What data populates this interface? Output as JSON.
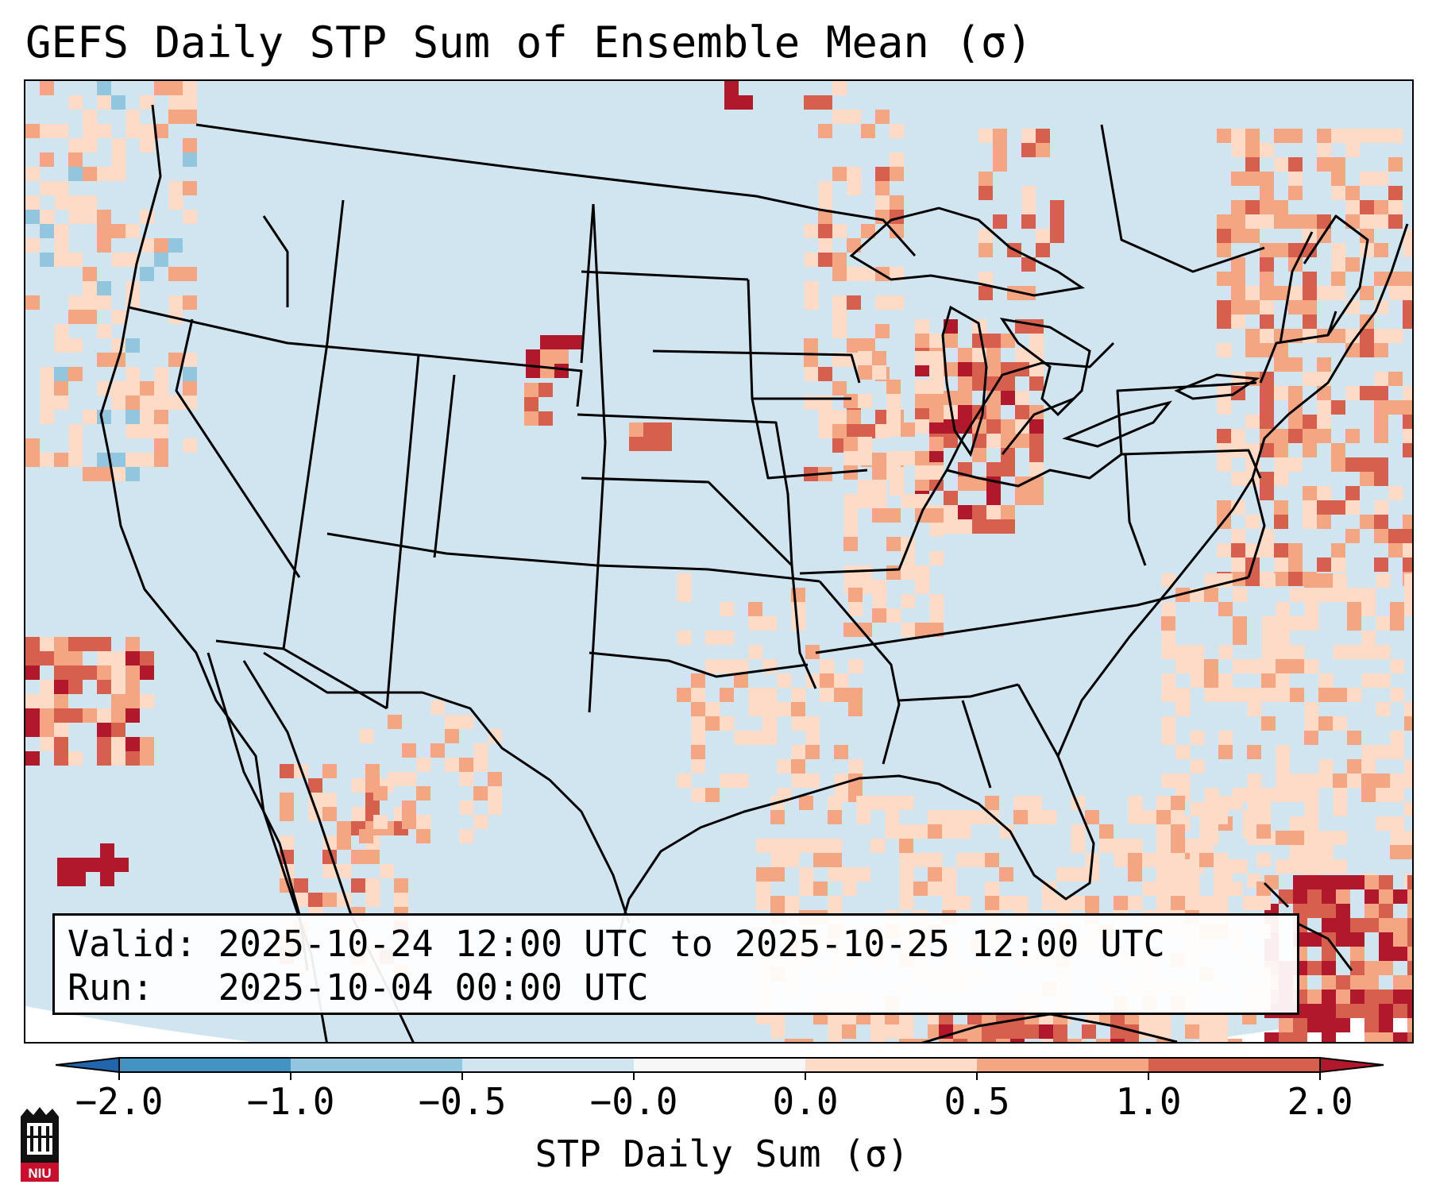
{
  "title": "GEFS Daily STP Sum of Ensemble Mean (σ)",
  "info": {
    "valid_line": "Valid: 2025-10-24 12:00 UTC to 2025-10-25 12:00 UTC",
    "run_line": "Run:   2025-10-04 00:00 UTC"
  },
  "colorbar": {
    "label": "STP Daily Sum (σ)",
    "ticks": [
      "−2.0",
      "−1.0",
      "−0.5",
      "−0.0",
      "0.0",
      "0.5",
      "1.0",
      "2.0"
    ],
    "bins": [
      {
        "from": -2.0,
        "to": -1.0,
        "color": "#4393c3"
      },
      {
        "from": -1.0,
        "to": -0.5,
        "color": "#92c5de"
      },
      {
        "from": -0.5,
        "to": -0.0,
        "color": "#d1e5f0"
      },
      {
        "from": -0.0,
        "to": 0.0,
        "color": "#f7f7f7"
      },
      {
        "from": 0.0,
        "to": 0.5,
        "color": "#fddbc7"
      },
      {
        "from": 0.5,
        "to": 1.0,
        "color": "#f4a582"
      },
      {
        "from": 1.0,
        "to": 2.0,
        "color": "#d6604d"
      }
    ],
    "under_color": "#2166ac",
    "over_color": "#b2182b"
  },
  "map": {
    "background_color": "#d1e5f0",
    "projection_outside_color": "#ffffff"
  },
  "logo": {
    "text": "NIU"
  }
}
